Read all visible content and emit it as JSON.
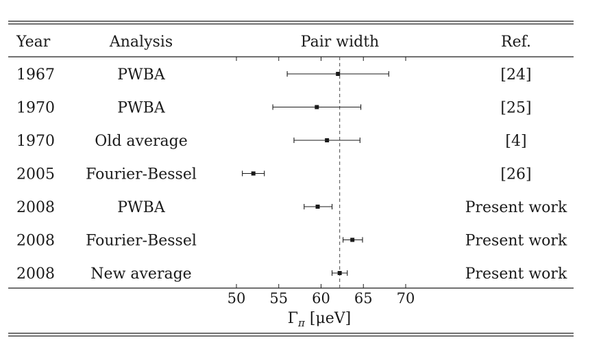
{
  "chart_data": {
    "type": "scatter",
    "style": "forest-plot with horizontal error bars",
    "columns": {
      "year": "Year",
      "analysis": "Analysis",
      "plot": "Pair width",
      "ref": "Ref."
    },
    "rows": [
      {
        "year": "1967",
        "analysis": "PWBA",
        "value": 62.0,
        "low": 56.0,
        "high": 68.0,
        "ref": "[24]"
      },
      {
        "year": "1970",
        "analysis": "PWBA",
        "value": 59.5,
        "low": 54.3,
        "high": 64.7,
        "ref": "[25]"
      },
      {
        "year": "1970",
        "analysis": "Old average",
        "value": 60.7,
        "low": 56.8,
        "high": 64.6,
        "ref": "[4]"
      },
      {
        "year": "2005",
        "analysis": "Fourier-Bessel",
        "value": 52.0,
        "low": 50.7,
        "high": 53.3,
        "ref": "[26]"
      },
      {
        "year": "2008",
        "analysis": "PWBA",
        "value": 59.6,
        "low": 58.0,
        "high": 61.3,
        "ref": "Present work"
      },
      {
        "year": "2008",
        "analysis": "Fourier-Bessel",
        "value": 63.7,
        "low": 62.6,
        "high": 64.9,
        "ref": "Present work"
      },
      {
        "year": "2008",
        "analysis": "New average",
        "value": 62.2,
        "low": 61.3,
        "high": 63.1,
        "ref": "Present work"
      }
    ],
    "reference_line": 62.2,
    "reference_line_style": "dashed",
    "x_ticks": [
      50,
      55,
      60,
      65,
      70
    ],
    "xlim": [
      50,
      72
    ],
    "xlabel": "Γπ [μeV]",
    "grid": false,
    "legend": "none"
  }
}
